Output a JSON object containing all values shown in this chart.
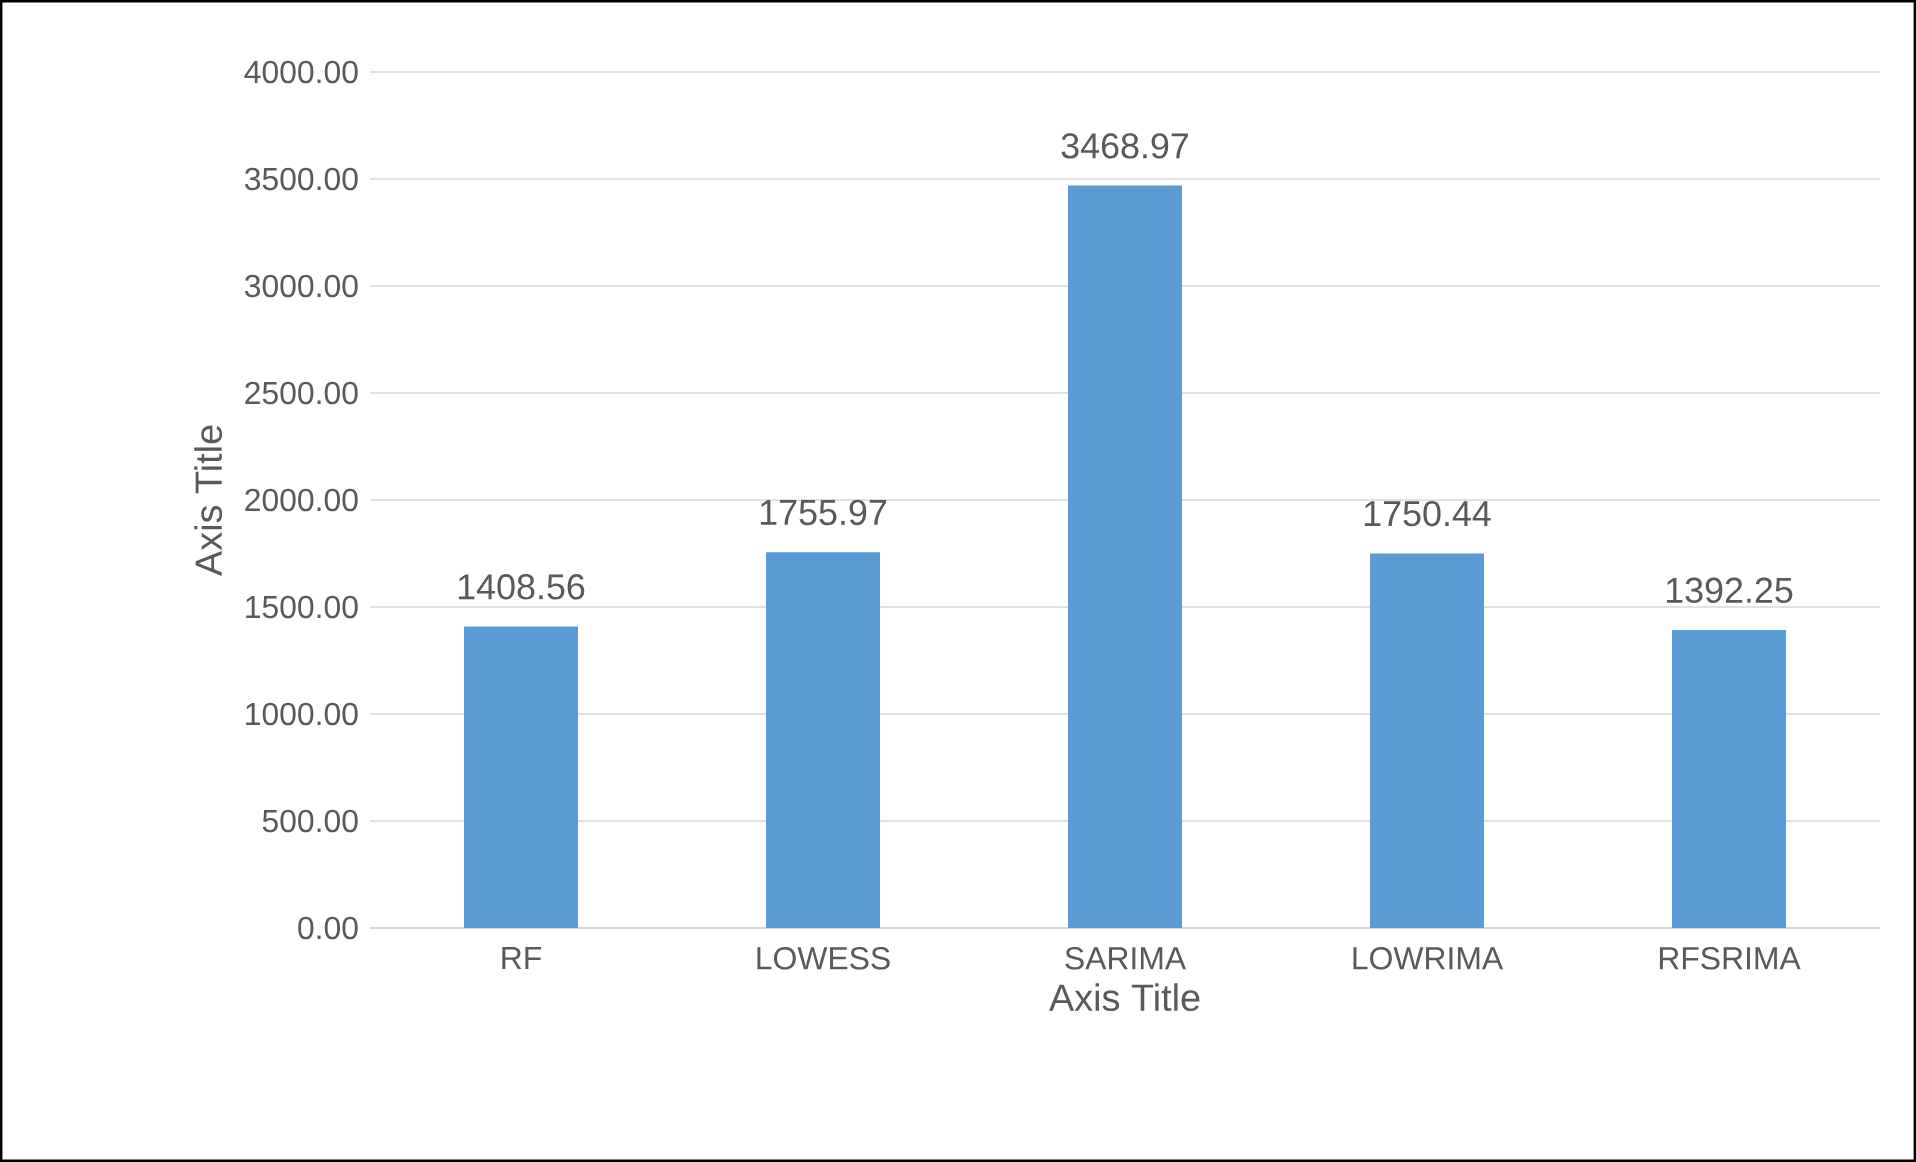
{
  "chart_data": {
    "type": "bar",
    "xlabel": "Axis Title",
    "ylabel": "Axis Title",
    "categories": [
      "RF",
      "LOWESS",
      "SARIMA",
      "LOWRIMA",
      "RFSRIMA"
    ],
    "values": [
      1408.56,
      1755.97,
      3468.97,
      1750.44,
      1392.25
    ],
    "value_labels": [
      "1408.56",
      "1755.97",
      "3468.97",
      "1750.44",
      "1392.25"
    ],
    "color": "#5b9bd5",
    "ylim": [
      0,
      4000
    ],
    "yticks": [
      {
        "value": 0,
        "label": "0.00"
      },
      {
        "value": 500,
        "label": "500.00"
      },
      {
        "value": 1000,
        "label": "1000.00"
      },
      {
        "value": 1500,
        "label": "1500.00"
      },
      {
        "value": 2000,
        "label": "2000.00"
      },
      {
        "value": 2500,
        "label": "2500.00"
      },
      {
        "value": 3000,
        "label": "3000.00"
      },
      {
        "value": 3500,
        "label": "3500.00"
      },
      {
        "value": 4000,
        "label": "4000.00"
      }
    ],
    "grid": "y"
  }
}
